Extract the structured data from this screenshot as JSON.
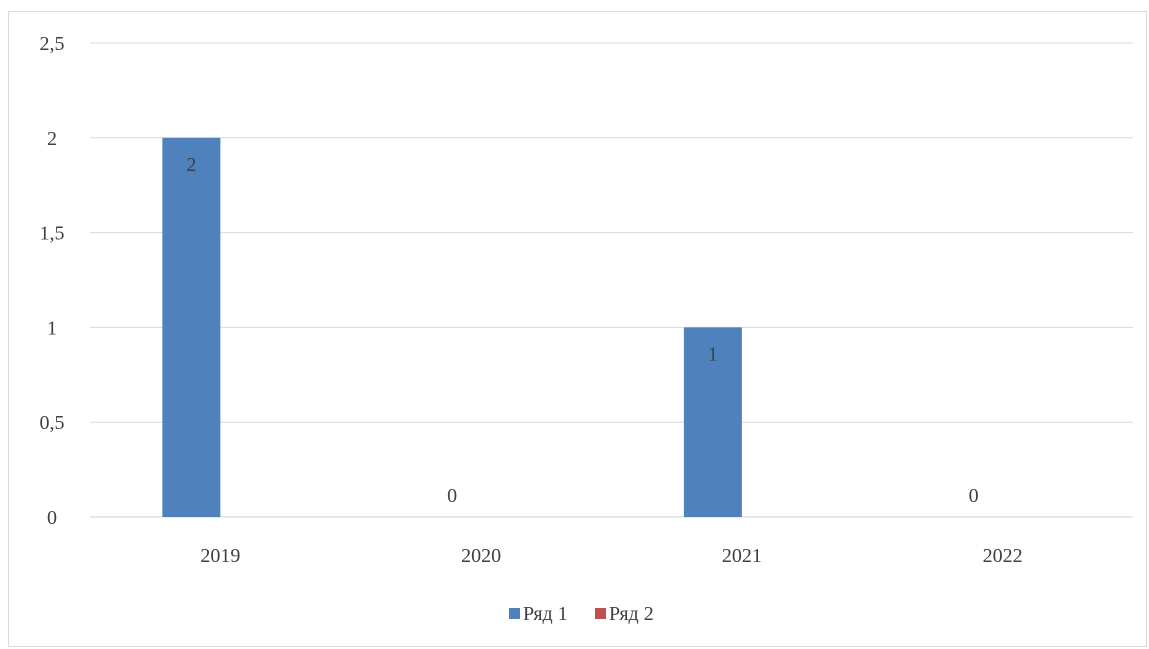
{
  "chart_data": {
    "type": "bar",
    "categories": [
      "2019",
      "2020",
      "2021",
      "2022"
    ],
    "series": [
      {
        "name": "Ряд 1",
        "values": [
          2,
          0,
          1,
          0
        ],
        "color": "#4f81bd",
        "data_labels": [
          "2",
          "0",
          "1",
          "0"
        ]
      },
      {
        "name": "Ряд 2",
        "values": [
          0,
          0,
          0,
          0
        ],
        "color": "#c0504d"
      }
    ],
    "ylim": [
      0,
      2.5
    ],
    "y_ticks": [
      0,
      0.5,
      1,
      1.5,
      2,
      2.5
    ],
    "y_tick_labels": [
      "0",
      "0,5",
      "1",
      "1,5",
      "2",
      "2,5"
    ],
    "grid": true,
    "legend_position": "bottom"
  }
}
